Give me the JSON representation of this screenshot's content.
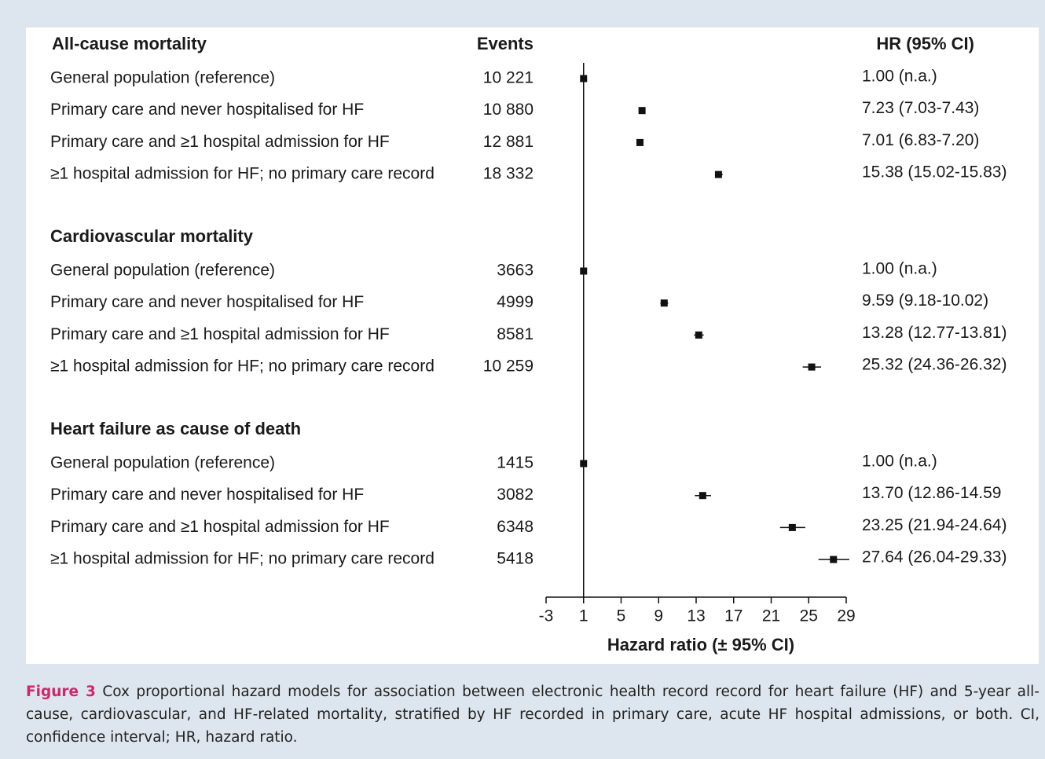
{
  "chart_data": {
    "type": "forest",
    "column_headers": {
      "events": "Events",
      "hr": "HR (95% CI)"
    },
    "groups": [
      {
        "title": "All-cause mortality",
        "rows": [
          {
            "label": "General population (reference)",
            "events": "10 221",
            "hr": 1.0,
            "lo": null,
            "hi": null,
            "hr_label": "1.00 (n.a.)"
          },
          {
            "label": "Primary care and never hospitalised for HF",
            "events": "10 880",
            "hr": 7.23,
            "lo": 7.03,
            "hi": 7.43,
            "hr_label": "7.23 (7.03-7.43)"
          },
          {
            "label": "Primary care and ≥1 hospital admission for HF",
            "events": "12 881",
            "hr": 7.01,
            "lo": 6.83,
            "hi": 7.2,
            "hr_label": "7.01 (6.83-7.20)"
          },
          {
            "label": "≥1 hospital admission for HF; no primary care record",
            "events": "18 332",
            "hr": 15.38,
            "lo": 15.02,
            "hi": 15.83,
            "hr_label": "15.38 (15.02-15.83)"
          }
        ]
      },
      {
        "title": "Cardiovascular mortality",
        "rows": [
          {
            "label": "General population (reference)",
            "events": "3663",
            "hr": 1.0,
            "lo": null,
            "hi": null,
            "hr_label": "1.00 (n.a.)"
          },
          {
            "label": "Primary care and never hospitalised for HF",
            "events": "4999",
            "hr": 9.59,
            "lo": 9.18,
            "hi": 10.02,
            "hr_label": "9.59 (9.18-10.02)"
          },
          {
            "label": "Primary care and ≥1 hospital admission for HF",
            "events": "8581",
            "hr": 13.28,
            "lo": 12.77,
            "hi": 13.81,
            "hr_label": "13.28 (12.77-13.81)"
          },
          {
            "label": "≥1 hospital admission for HF; no primary care record",
            "events": "10 259",
            "hr": 25.32,
            "lo": 24.36,
            "hi": 26.32,
            "hr_label": "25.32 (24.36-26.32)"
          }
        ]
      },
      {
        "title": "Heart failure as cause of death",
        "rows": [
          {
            "label": "General population (reference)",
            "events": "1415",
            "hr": 1.0,
            "lo": null,
            "hi": null,
            "hr_label": "1.00 (n.a.)"
          },
          {
            "label": "Primary care and never hospitalised for HF",
            "events": "3082",
            "hr": 13.7,
            "lo": 12.86,
            "hi": 14.59,
            "hr_label": "13.70 (12.86-14.59"
          },
          {
            "label": "Primary care and ≥1 hospital admission for HF",
            "events": "6348",
            "hr": 23.25,
            "lo": 21.94,
            "hi": 24.64,
            "hr_label": "23.25 (21.94-24.64)"
          },
          {
            "label": "≥1 hospital admission for HF; no primary care record",
            "events": "5418",
            "hr": 27.64,
            "lo": 26.04,
            "hi": 29.33,
            "hr_label": "27.64 (26.04-29.33)"
          }
        ]
      }
    ],
    "xlim": [
      -3,
      29
    ],
    "xticks": [
      -3,
      1,
      5,
      9,
      13,
      17,
      21,
      25,
      29
    ],
    "xlabel": "Hazard ratio (± 95% CI)",
    "reference": 1,
    "color": "#111111"
  },
  "caption": {
    "label": "Figure 3",
    "text": "Cox proportional hazard models for association between electronic health record record for heart failure (HF) and 5-year all-cause, cardiovascular, and HF-related mortality, stratified by HF recorded in primary care, acute HF hospital admissions, or both. CI, confidence interval; HR, hazard ratio."
  }
}
